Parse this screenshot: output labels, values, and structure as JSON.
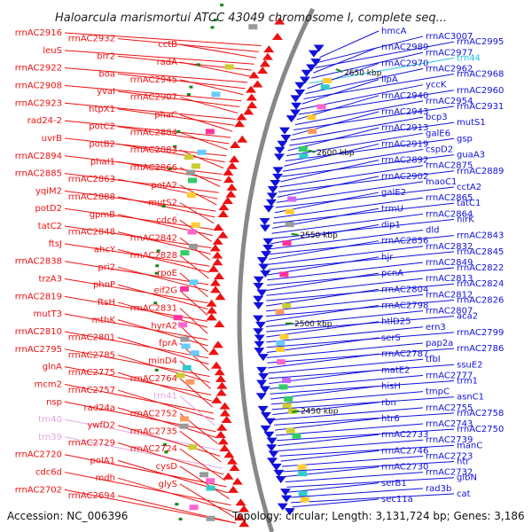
{
  "title": "Haloarcula marismortui ATCC 43049 chromosome I, complete seq...",
  "footer": {
    "accession": "Accession: NC_006396",
    "summary": "Topology: circular; Length: 3,131,724 bp; Genes: 3,186"
  },
  "colors": {
    "left_strand": "#ee1111",
    "right_strand": "#1111dd",
    "trna_left": "#e0a8e0",
    "trna_right": "#22c0e8",
    "backbone": "#888888",
    "tick": "#118811"
  },
  "ticks": [
    "2650 kbp",
    "2600 kbp",
    "2550 kbp",
    "2500 kbp",
    "2450 kbp"
  ],
  "left_labels": [
    "rrnAC2916",
    "rrnAC2932",
    "cctB",
    "leuS",
    "brr2",
    "radA",
    "rrnAC2922",
    "boa",
    "rrnAC2945",
    "rrnAC2908",
    "yvaI",
    "rrnAC2907",
    "rrnAC2923",
    "htpX1",
    "phaC",
    "rad24-2",
    "potC2",
    "rrnAC2884",
    "uvrB",
    "potB2",
    "rrnAC2883",
    "rrnAC2894",
    "phaI1",
    "rrnAC2866",
    "rrnAC2885",
    "rrnAC2863",
    "potA2",
    "yqiM2",
    "rrnAC2888",
    "mutS2",
    "potD2",
    "gpmB",
    "cdc6",
    "tatC2",
    "rrnAC2848",
    "rrnAC2842",
    "ftsJ",
    "ahcY",
    "rrnAC2828",
    "rrnAC2838",
    "pri2",
    "rpoE",
    "trzA3",
    "phnP",
    "eif2G",
    "rrnAC2819",
    "ftsH",
    "rrnAC2831",
    "mutT3",
    "mthK",
    "hyrA2",
    "rrnAC2810",
    "rrnAC2801",
    "fprA",
    "rrnAC2795",
    "rrnAC2785",
    "minD4",
    "glnA",
    "rrnAC2775",
    "rrnAC2764",
    "mcm2",
    "rrnAC2757",
    "nsp",
    "rad24a",
    "rrnAC2752",
    "ywfD2",
    "rrnAC2735",
    "rrnAC2729",
    "rrnAC2724",
    "rrnAC2720",
    "polA1",
    "cysD",
    "cdc6d",
    "mdh",
    "glyS",
    "rrnAC2702",
    "rrnAC2694"
  ],
  "left_trna": [
    "trn41",
    "trn40",
    "trn39"
  ],
  "right_labels": [
    "hmcA",
    "rrnAC3007",
    "rrnAC2995",
    "rrnAC2989",
    "rrnAC2977",
    "rrnAC2970",
    "rrnAC2962",
    "rrnAC2968",
    "lipA",
    "yccK",
    "rrnAC2960",
    "rrnAC2940",
    "rrnAC2954",
    "rrnAC2931",
    "rrnAC2943",
    "bcp3",
    "mutS1",
    "rrnAC2913",
    "galE6",
    "gsp",
    "rrnAC2919",
    "cspD2",
    "guaA3",
    "rrnAC2892",
    "rrnAC2875",
    "rrnAC2889",
    "rrnAC2902",
    "maoC1",
    "cctA2",
    "galE2",
    "rrnAC2865",
    "tatC1",
    "trmU",
    "rrnAC2864",
    "nirK",
    "dip1",
    "dld",
    "rrnAC2843",
    "rrnAC2856",
    "rrnAC2832",
    "rrnAC2845",
    "hjr",
    "rrnAC2849",
    "rrnAC2822",
    "pcnA",
    "rrnAC2813",
    "rrnAC2824",
    "rrnAC2804",
    "rrnAC2812",
    "rrnAC2826",
    "rrnAC2798",
    "rrnAC2807",
    "aca2",
    "htlD25",
    "ern3",
    "rrnAC2799",
    "serS",
    "pap2a",
    "rrnAC2786",
    "rrnAC2787",
    "tfbI",
    "ssuE2",
    "matE2",
    "rrnAC2777",
    "trm1",
    "hisH",
    "tmpC",
    "asnC1",
    "rbn",
    "rrnAC2755",
    "rrnAC2758",
    "htr6",
    "rrnAC2743",
    "rrnAC2750",
    "rrnAC2733",
    "rrnAC2739",
    "manC",
    "rrnAC2746",
    "rrnAC2723",
    "htr",
    "rrnAC2730",
    "rrnAC2732",
    "glbN",
    "serB1",
    "rad3b",
    "cat",
    "sec11a"
  ],
  "right_trna": [
    "trn44"
  ]
}
